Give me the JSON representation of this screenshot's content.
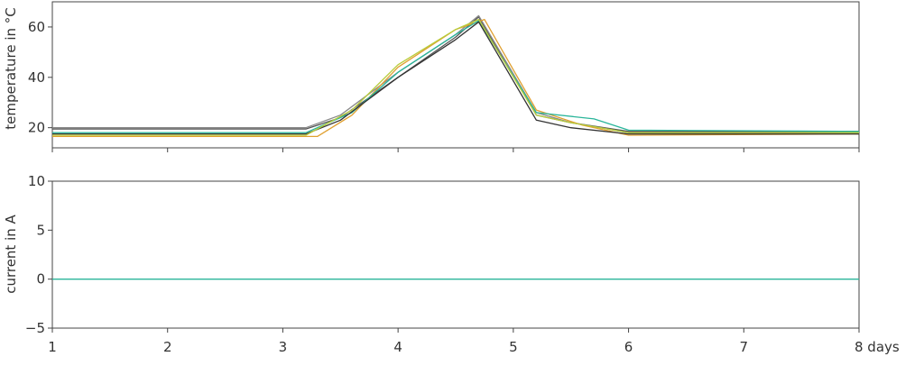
{
  "chart_data": [
    {
      "type": "line",
      "title": "",
      "ylabel": "temperature in °C",
      "xlabel": "",
      "xlim": [
        1,
        8
      ],
      "ylim": [
        12,
        70
      ],
      "yticks": [
        20,
        40,
        60
      ],
      "grid": false,
      "series": [
        {
          "color": "#555555",
          "x": [
            1,
            3.2,
            3.5,
            4,
            4.5,
            4.7,
            5.2,
            5.5,
            6,
            8
          ],
          "y": [
            19.5,
            19.5,
            24,
            40,
            56,
            64,
            25,
            22,
            18.5,
            18.5
          ]
        },
        {
          "color": "#888888",
          "x": [
            1,
            3.2,
            3.5,
            4,
            4.5,
            4.7,
            5.2,
            5.5,
            6,
            8
          ],
          "y": [
            20,
            20,
            25,
            42,
            57,
            64.5,
            26,
            22,
            18,
            18
          ]
        },
        {
          "color": "#e0a030",
          "x": [
            1,
            3.3,
            3.6,
            4,
            4.5,
            4.75,
            5.2,
            5.6,
            6,
            8
          ],
          "y": [
            16.5,
            16.5,
            25,
            44,
            59,
            63,
            27,
            21,
            17,
            17.5
          ]
        },
        {
          "color": "#2ab59a",
          "x": [
            1,
            3.2,
            3.6,
            4,
            4.5,
            4.7,
            5.2,
            5.7,
            6,
            8
          ],
          "y": [
            18,
            18,
            26,
            42,
            57,
            62.5,
            26,
            23.5,
            19,
            18.5
          ]
        },
        {
          "color": "#333333",
          "x": [
            1,
            3.2,
            3.5,
            4,
            4.5,
            4.7,
            5.2,
            5.5,
            6,
            8
          ],
          "y": [
            17.5,
            17.5,
            23,
            40,
            55,
            62,
            23,
            20,
            17.5,
            17.5
          ]
        },
        {
          "color": "#b8cc3a",
          "x": [
            1,
            3.2,
            3.6,
            4,
            4.5,
            4.7,
            5.2,
            5.5,
            6,
            8
          ],
          "y": [
            17,
            17,
            27,
            45,
            59,
            63,
            25,
            22,
            18,
            18
          ]
        }
      ]
    },
    {
      "type": "line",
      "title": "",
      "ylabel": "current in A",
      "xlabel": "",
      "xlim": [
        1,
        8
      ],
      "ylim": [
        -5,
        10
      ],
      "yticks": [
        -5,
        0,
        5,
        10
      ],
      "grid": false,
      "series": [
        {
          "color": "#2ab59a",
          "x": [
            1,
            8
          ],
          "y": [
            0,
            0
          ]
        }
      ]
    }
  ],
  "xticks": [
    1,
    2,
    3,
    4,
    5,
    6,
    7
  ],
  "xtick_last_label": "8 days"
}
